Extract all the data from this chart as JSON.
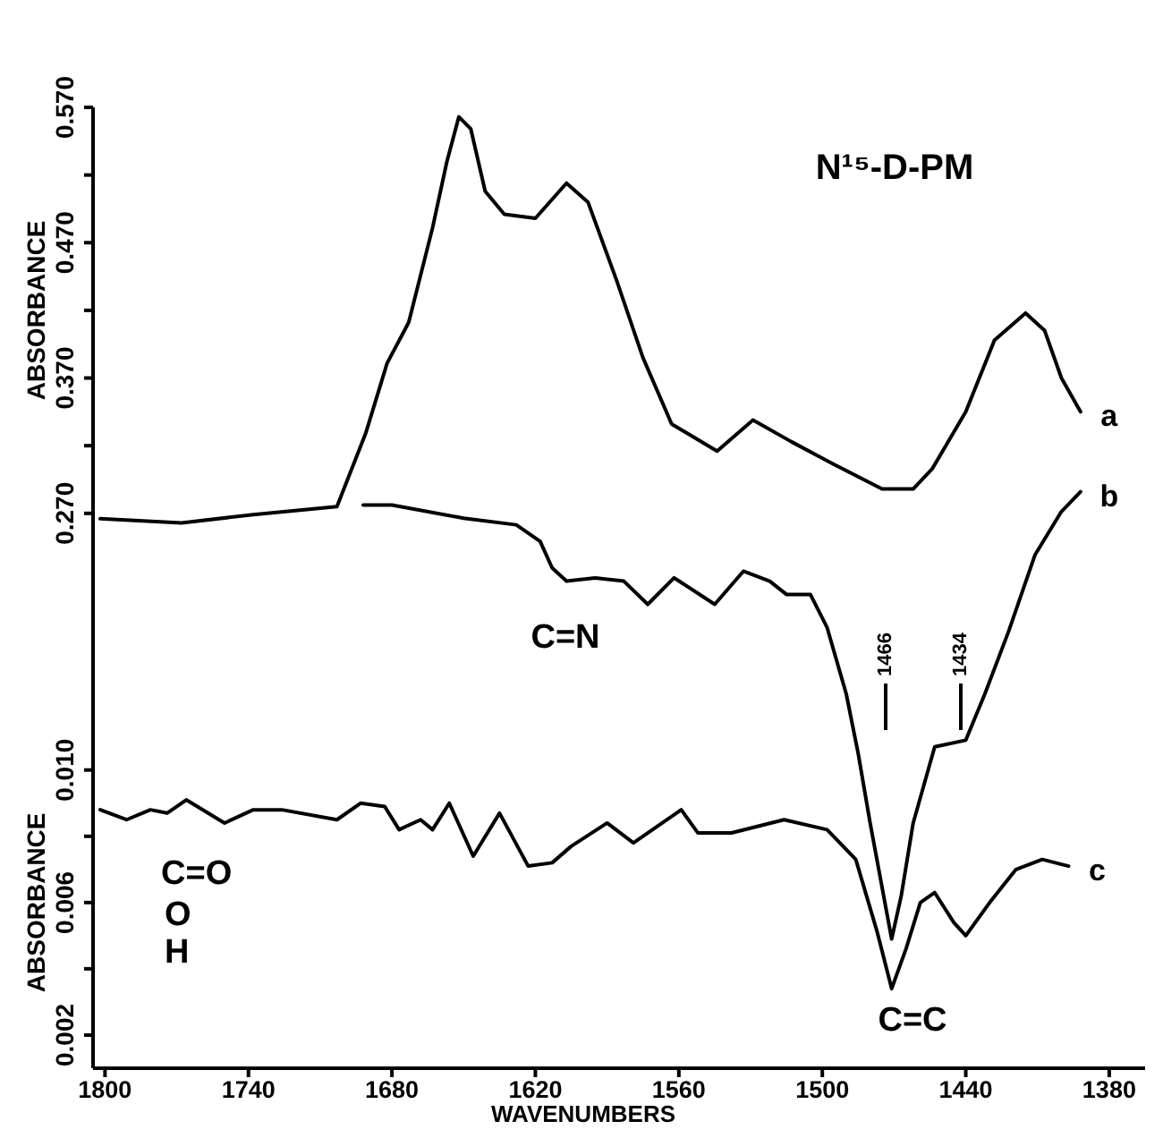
{
  "chart_data": [
    {
      "type": "line",
      "ylabel": "ABSORBANCE",
      "tick_labels": "y",
      "annotations": [
        "N¹⁵-D-PM"
      ],
      "xlim": [
        1805,
        1365
      ],
      "ylim": [
        -0.14,
        0.57
      ],
      "yticks": [
        {
          "value": 0.27,
          "label": "0.270"
        },
        {
          "value": 0.32,
          "label": null
        },
        {
          "value": 0.37,
          "label": "0.370"
        },
        {
          "value": 0.42,
          "label": null
        },
        {
          "value": 0.47,
          "label": "0.470"
        },
        {
          "value": 0.52,
          "label": null
        },
        {
          "value": 0.57,
          "label": "0.570"
        }
      ],
      "line_style": "solid",
      "series": [
        {
          "name": "a",
          "color": "#000000",
          "x": [
            1802,
            1768,
            1738,
            1703,
            1691,
            1682,
            1673,
            1663,
            1657,
            1652,
            1647,
            1641,
            1633,
            1620,
            1607,
            1598,
            1586,
            1575,
            1563,
            1544,
            1529,
            1513,
            1495,
            1475,
            1462,
            1454,
            1440,
            1428,
            1415,
            1407,
            1400,
            1392
          ],
          "values": [
            0.266,
            0.263,
            0.269,
            0.275,
            0.329,
            0.381,
            0.411,
            0.481,
            0.53,
            0.563,
            0.554,
            0.508,
            0.491,
            0.488,
            0.514,
            0.5,
            0.442,
            0.385,
            0.336,
            0.316,
            0.339,
            0.323,
            0.306,
            0.288,
            0.288,
            0.303,
            0.345,
            0.398,
            0.418,
            0.405,
            0.37,
            0.345
          ]
        }
      ]
    },
    {
      "type": "line",
      "xlabel": "WAVENUMBERS",
      "ylabel": "ABSORBANCE",
      "annotations": [
        "C=N",
        "C=O",
        "O",
        "H",
        "C=C",
        "1466",
        "1434"
      ],
      "xlim": [
        1805,
        1365
      ],
      "xticks": [
        1800,
        1740,
        1680,
        1620,
        1560,
        1500,
        1440,
        1380
      ],
      "ylim": [
        0.001,
        0.03
      ],
      "yticks": [
        {
          "value": 0.002,
          "label": "0.002"
        },
        {
          "value": 0.004,
          "label": null
        },
        {
          "value": 0.006,
          "label": "0.006"
        },
        {
          "value": 0.008,
          "label": null
        },
        {
          "value": 0.01,
          "label": "0.010"
        }
      ],
      "line_style": "solid",
      "series": [
        {
          "name": "b",
          "color": "#000000",
          "x": [
            1692,
            1680,
            1650,
            1628,
            1618,
            1613,
            1607,
            1595,
            1583,
            1573,
            1562,
            1545,
            1533,
            1522,
            1515,
            1505,
            1498,
            1490,
            1485,
            1480,
            1471,
            1467,
            1462,
            1453,
            1440,
            1432,
            1422,
            1411,
            1400,
            1392
          ],
          "values": [
            0.018,
            0.018,
            0.0176,
            0.0174,
            0.0169,
            0.0161,
            0.0157,
            0.0158,
            0.0157,
            0.015,
            0.0158,
            0.015,
            0.016,
            0.0157,
            0.0153,
            0.0153,
            0.0143,
            0.0123,
            0.0105,
            0.0084,
            0.0049,
            0.0062,
            0.0084,
            0.0107,
            0.0109,
            0.0123,
            0.0142,
            0.0165,
            0.0178,
            0.0184
          ]
        },
        {
          "name": "c",
          "color": "#000000",
          "x": [
            1802,
            1791,
            1781,
            1774,
            1766,
            1750,
            1738,
            1726,
            1703,
            1693,
            1683,
            1677,
            1668,
            1663,
            1656,
            1646,
            1635,
            1623,
            1613,
            1605,
            1590,
            1579,
            1559,
            1552,
            1538,
            1516,
            1498,
            1486,
            1477,
            1471,
            1465,
            1459,
            1453,
            1445,
            1440,
            1430,
            1419,
            1408,
            1397
          ],
          "values": [
            0.0088,
            0.0085,
            0.0088,
            0.0087,
            0.0091,
            0.0084,
            0.0088,
            0.0088,
            0.0085,
            0.009,
            0.0089,
            0.0082,
            0.0085,
            0.0082,
            0.009,
            0.0074,
            0.0087,
            0.0071,
            0.0072,
            0.0077,
            0.0084,
            0.0078,
            0.0088,
            0.0081,
            0.0081,
            0.0085,
            0.0082,
            0.0073,
            0.0051,
            0.0034,
            0.0046,
            0.006,
            0.0063,
            0.0054,
            0.005,
            0.006,
            0.007,
            0.0073,
            0.0071
          ]
        }
      ]
    }
  ]
}
